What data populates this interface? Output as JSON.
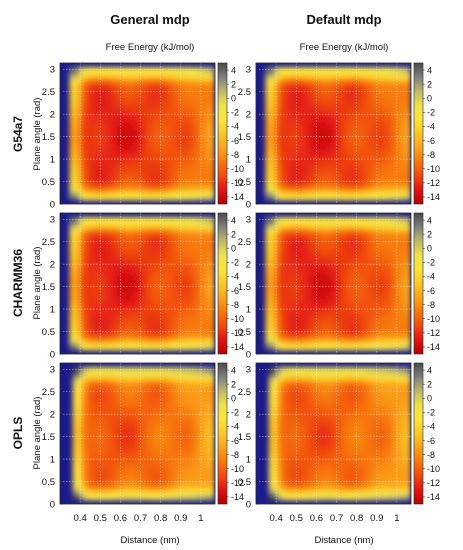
{
  "figure": {
    "column_titles": [
      "General mdp",
      "Default mdp"
    ],
    "colorbar_title": "Free Energy (kJ/mol)",
    "row_labels": [
      "G54a7",
      "CHARMM36",
      "OPLS"
    ],
    "ylabel": "Plane angle (rad)",
    "xlabel": "Distance (nm)"
  },
  "colors": {
    "background": "#1a1a8c",
    "colormap": [
      "#b50000",
      "#e01414",
      "#f04a10",
      "#f7780d",
      "#fba41c",
      "#fbc825",
      "#fde33b",
      "#efe24b",
      "#bfb86a",
      "#7f7f7f",
      "#4a4a4a"
    ]
  },
  "chart_data": {
    "type": "heatmap",
    "layout": "3x2 panel grid",
    "colorbar": {
      "label": "Free Energy (kJ/mol)",
      "ticks": [
        4,
        2,
        0,
        -2,
        -4,
        -6,
        -8,
        -10,
        -12,
        -14
      ],
      "range": [
        -15,
        5
      ],
      "colormap": "black-yellow-red"
    },
    "xaxis": {
      "label": "Distance (nm)",
      "ticks": [
        0.4,
        0.5,
        0.6,
        0.7,
        0.8,
        0.9,
        1
      ],
      "tick_labels": [
        "0.4",
        "0.5",
        "0.6",
        "0.7",
        "0.8",
        "0.9",
        "1"
      ],
      "range": [
        0.3,
        1.07
      ]
    },
    "yaxis": {
      "label": "Plane angle (rad)",
      "ticks": [
        0,
        0.5,
        1,
        1.5,
        2,
        2.5,
        3
      ],
      "tick_labels": [
        "0",
        "0.5",
        "1",
        "1.5",
        "2",
        "2.5",
        "3"
      ],
      "range": [
        0,
        3.14
      ]
    },
    "grid": true,
    "panels": [
      {
        "row": "G54a7",
        "column": "General mdp",
        "x_min_region": 0.37,
        "z_min": -13,
        "z_max": 5
      },
      {
        "row": "G54a7",
        "column": "Default mdp",
        "x_min_region": 0.37,
        "z_min": -13,
        "z_max": 5
      },
      {
        "row": "CHARMM36",
        "column": "General mdp",
        "x_min_region": 0.37,
        "z_min": -13,
        "z_max": 5
      },
      {
        "row": "CHARMM36",
        "column": "Default mdp",
        "x_min_region": 0.37,
        "z_min": -13,
        "z_max": 5
      },
      {
        "row": "OPLS",
        "column": "General mdp",
        "x_min_region": 0.38,
        "z_min": -11,
        "z_max": 5
      },
      {
        "row": "OPLS",
        "column": "Default mdp",
        "x_min_region": 0.38,
        "z_min": -11,
        "z_max": 5
      }
    ]
  }
}
